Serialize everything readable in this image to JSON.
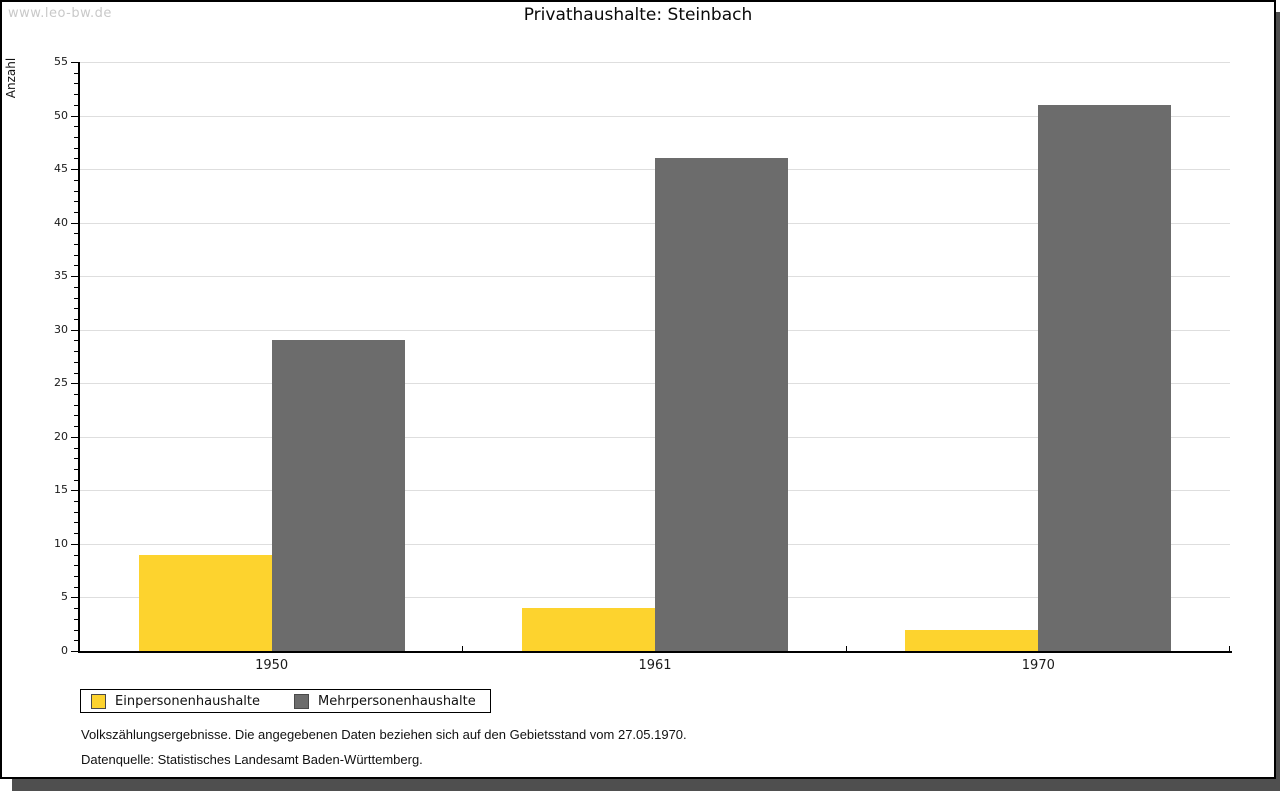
{
  "watermark": "www.leo-bw.de",
  "chart_data": {
    "type": "bar",
    "title": "Privathaushalte: Steinbach",
    "categories": [
      "1950",
      "1961",
      "1970"
    ],
    "series": [
      {
        "name": "Einpersonenhaushalte",
        "color": "#FDD32E",
        "values": [
          9,
          4,
          2
        ]
      },
      {
        "name": "Mehrpersonenhaushalte",
        "color": "#6C6C6C",
        "values": [
          29,
          46,
          51
        ]
      }
    ],
    "xlabel": "",
    "ylabel": "Anzahl",
    "ylim": [
      0,
      55
    ],
    "ytick_step": 5,
    "minor_tick_step": 1,
    "grid": true,
    "legend_position": "bottom-left"
  },
  "footer": {
    "line1": "Volkszählungsergebnisse. Die angegebenen Daten beziehen sich auf den Gebietsstand vom 27.05.1970.",
    "line2": "Datenquelle: Statistisches Landesamt Baden-Württemberg."
  }
}
